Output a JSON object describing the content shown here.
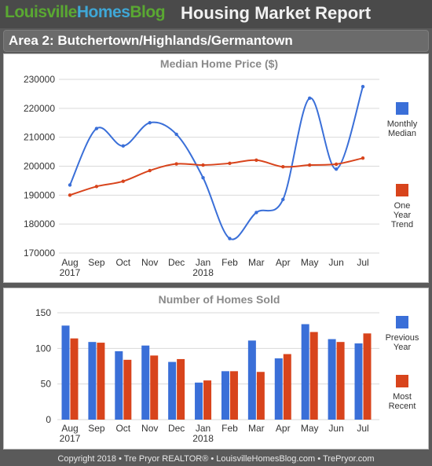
{
  "header": {
    "logo_part1": "Louisville",
    "logo_part2": "Homes",
    "logo_part3": "Blog",
    "report_title": "Housing Market Report",
    "area_title": "Area 2: Butchertown/Highlands/Germantown"
  },
  "footer": {
    "text": "Copyright 2018 • Tre Pryor REALTOR® • LouisvilleHomesBlog.com • TrePryor.com"
  },
  "colors": {
    "blue": "#3a6fd8",
    "red": "#d8441c",
    "grid": "#d9d9d9"
  },
  "chart_data": [
    {
      "type": "line",
      "title": "Median Home Price ($)",
      "categories": [
        "Aug",
        "Sep",
        "Oct",
        "Nov",
        "Dec",
        "Jan",
        "Feb",
        "Mar",
        "Apr",
        "May",
        "Jun",
        "Jul"
      ],
      "category_years": [
        "2017",
        "",
        "",
        "",
        "",
        "2018",
        "",
        "",
        "",
        "",
        "",
        ""
      ],
      "ylim": [
        170000,
        230000
      ],
      "yticks": [
        "230000",
        "220000",
        "210000",
        "200000",
        "190000",
        "180000",
        "170000"
      ],
      "grid": true,
      "legend_position": "right",
      "series": [
        {
          "name": "Monthly Median",
          "color": "#3a6fd8",
          "values": [
            193500,
            213000,
            207000,
            215000,
            211000,
            196000,
            175000,
            184000,
            188500,
            223500,
            199000,
            227500
          ]
        },
        {
          "name": "One Year Trend",
          "color": "#d8441c",
          "values": [
            190000,
            193000,
            194800,
            198500,
            200800,
            200400,
            201000,
            202100,
            199800,
            200400,
            200700,
            202800
          ]
        }
      ]
    },
    {
      "type": "bar",
      "title": "Number of Homes Sold",
      "categories": [
        "Aug",
        "Sep",
        "Oct",
        "Nov",
        "Dec",
        "Jan",
        "Feb",
        "Mar",
        "Apr",
        "May",
        "Jun",
        "Jul"
      ],
      "category_years": [
        "2017",
        "",
        "",
        "",
        "",
        "2018",
        "",
        "",
        "",
        "",
        "",
        ""
      ],
      "ylim": [
        0,
        150
      ],
      "yticks": [
        "150",
        "100",
        "50",
        "0"
      ],
      "grid": true,
      "legend_position": "right",
      "series": [
        {
          "name": "Previous Year",
          "color": "#3a6fd8",
          "values": [
            132,
            109,
            96,
            104,
            81,
            52,
            68,
            111,
            86,
            134,
            113,
            107
          ]
        },
        {
          "name": "Most Recent",
          "color": "#d8441c",
          "values": [
            114,
            108,
            84,
            90,
            85,
            55,
            68,
            67,
            92,
            123,
            109,
            121
          ]
        }
      ]
    }
  ]
}
